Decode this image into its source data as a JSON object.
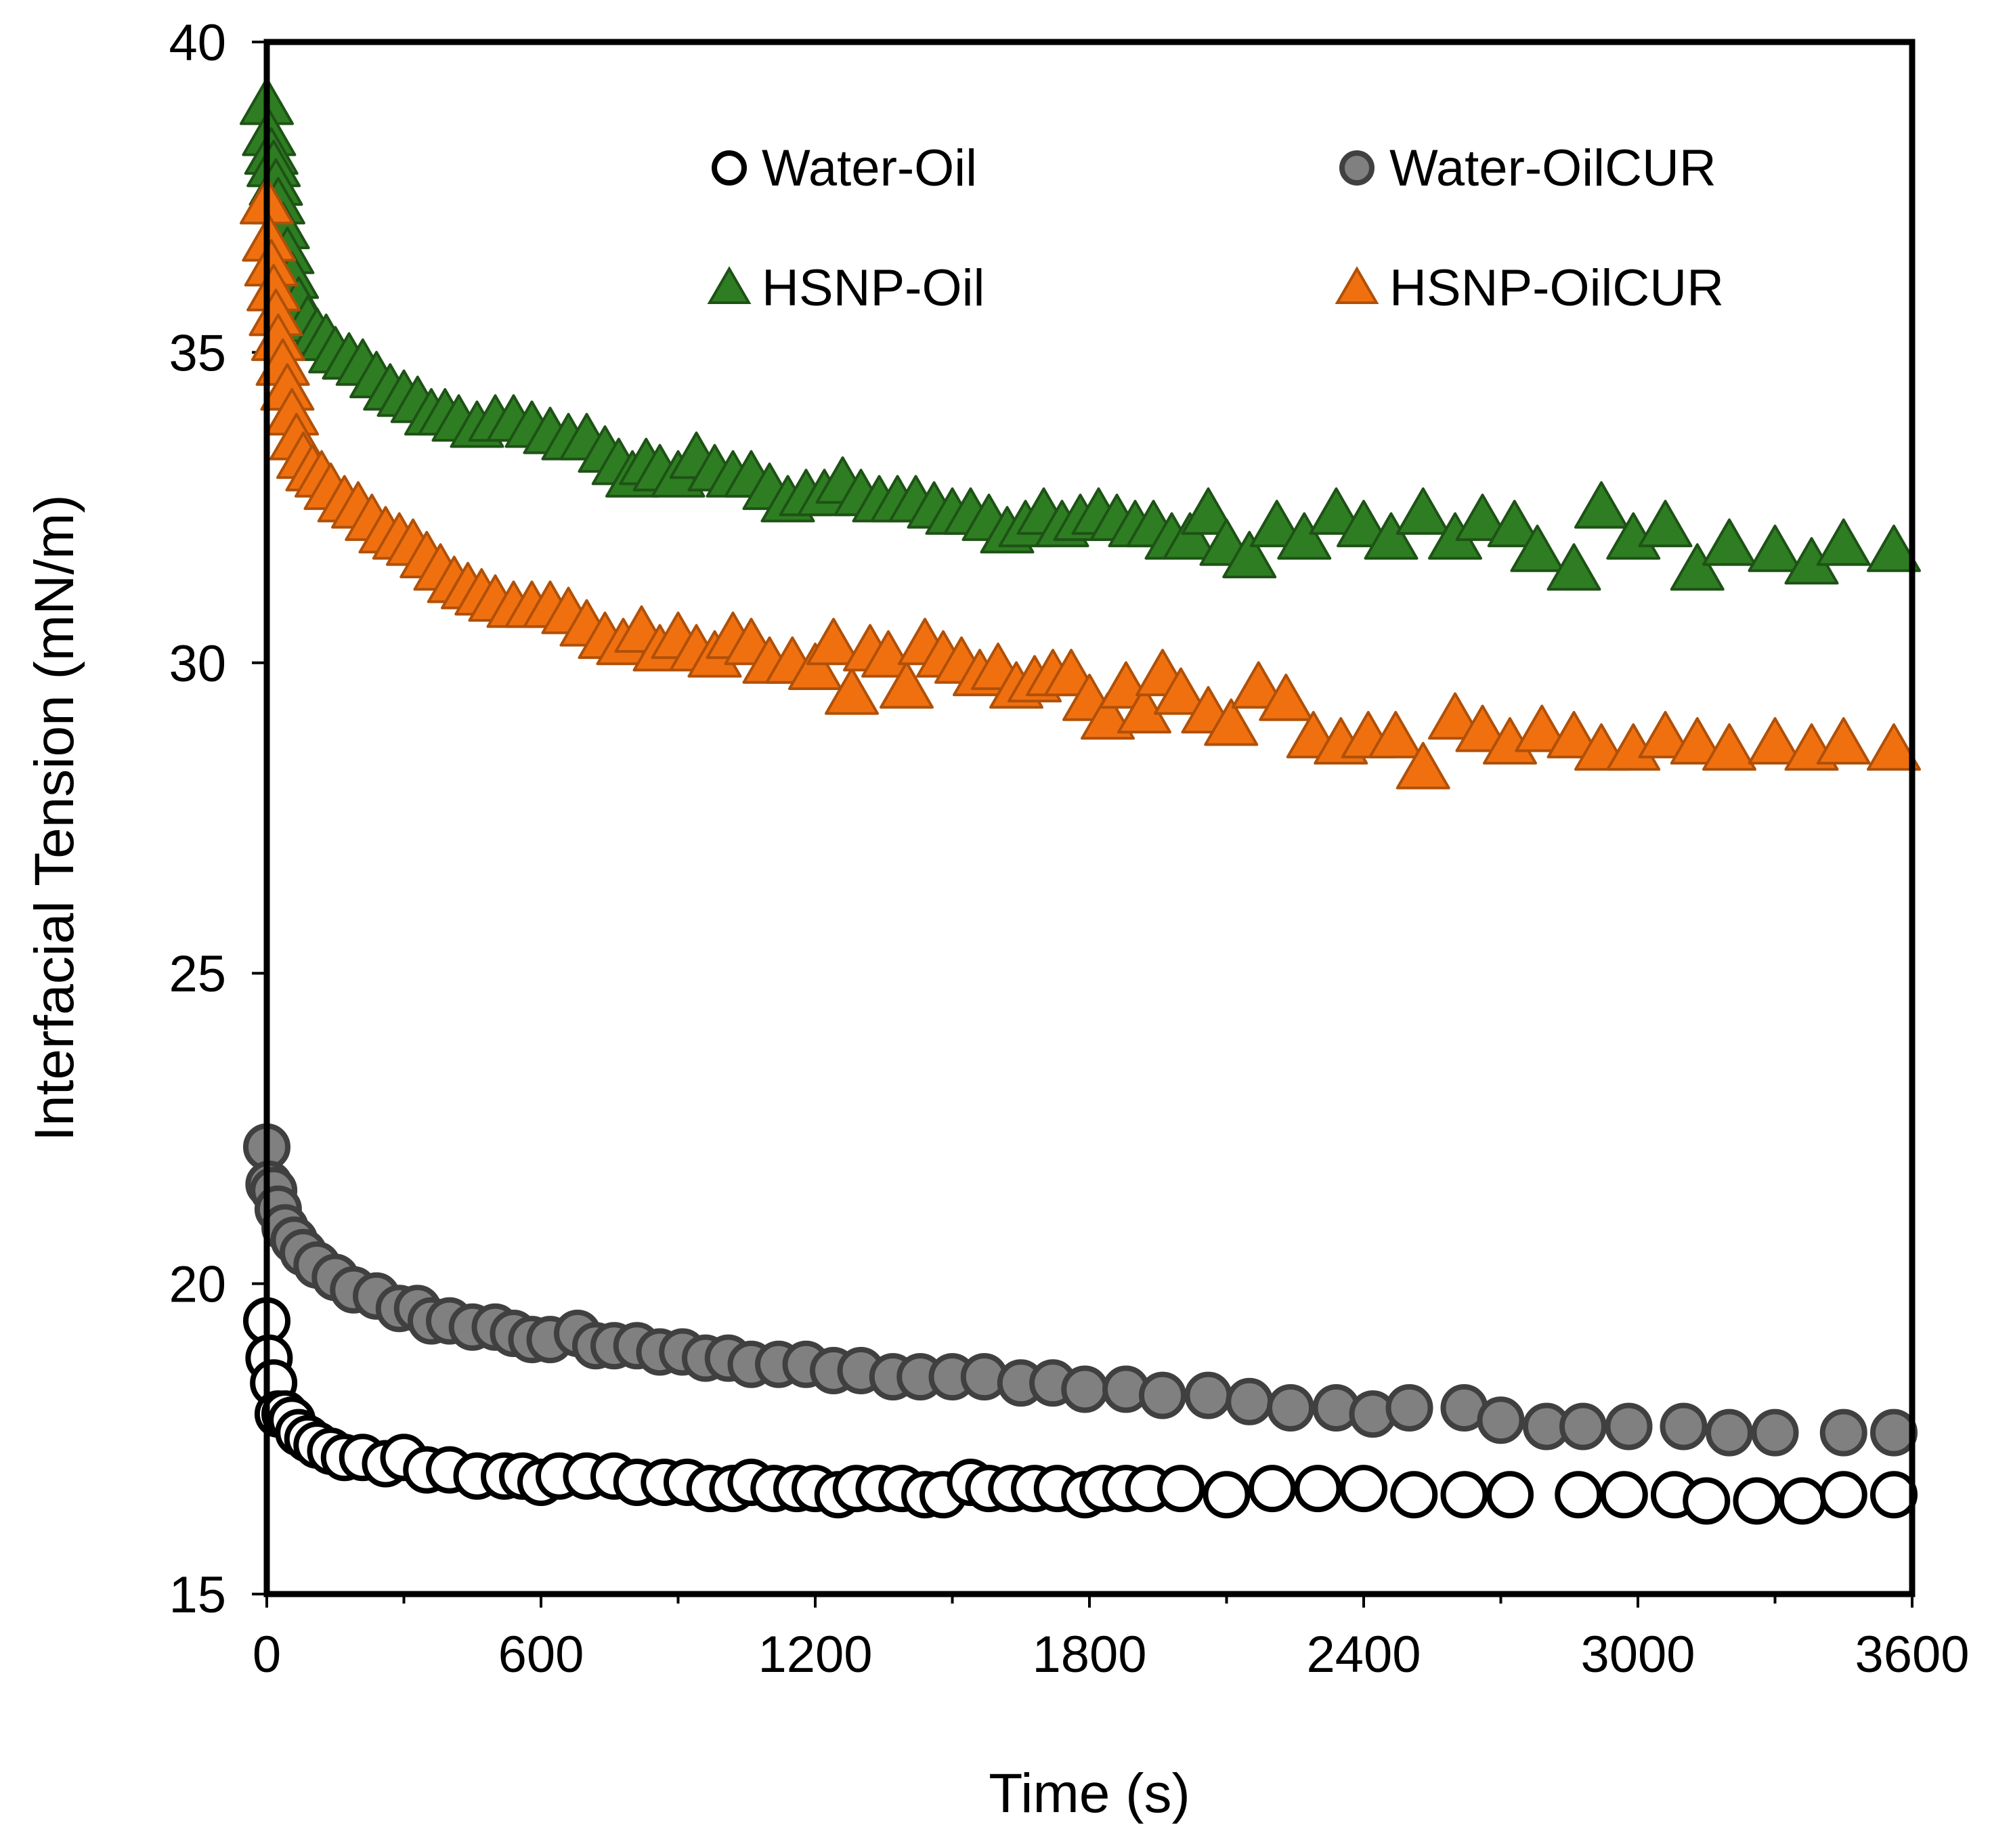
{
  "chart_data": {
    "type": "scatter",
    "title": "",
    "xlabel": "Time (s)",
    "ylabel": "Interfacial  Tension (mN/m)",
    "xlim": [
      0,
      3600
    ],
    "ylim": [
      15,
      40
    ],
    "xticks": [
      0,
      600,
      1200,
      1800,
      2400,
      3000,
      3600
    ],
    "xtick_labels": [
      "0",
      "600",
      "1200",
      "1800",
      "2400",
      "3000",
      "3600"
    ],
    "yticks": [
      15,
      20,
      25,
      30,
      35,
      40
    ],
    "ytick_labels": [
      "15",
      "20",
      "25",
      "30",
      "35",
      "40"
    ],
    "grid": false,
    "legend_position": "top",
    "series": [
      {
        "name": "Water-Oil",
        "marker": "circle",
        "fill": "#ffffff",
        "stroke": "#000000",
        "points": [
          [
            0,
            19.4
          ],
          [
            5,
            18.8
          ],
          [
            15,
            18.4
          ],
          [
            25,
            17.9
          ],
          [
            40,
            17.9
          ],
          [
            55,
            17.8
          ],
          [
            70,
            17.6
          ],
          [
            90,
            17.5
          ],
          [
            110,
            17.4
          ],
          [
            140,
            17.3
          ],
          [
            170,
            17.2
          ],
          [
            210,
            17.2
          ],
          [
            260,
            17.1
          ],
          [
            300,
            17.2
          ],
          [
            350,
            17.0
          ],
          [
            400,
            17.0
          ],
          [
            460,
            16.9
          ],
          [
            520,
            16.9
          ],
          [
            560,
            16.9
          ],
          [
            600,
            16.8
          ],
          [
            640,
            16.9
          ],
          [
            700,
            16.9
          ],
          [
            760,
            16.9
          ],
          [
            810,
            16.8
          ],
          [
            870,
            16.8
          ],
          [
            920,
            16.8
          ],
          [
            970,
            16.7
          ],
          [
            1020,
            16.7
          ],
          [
            1060,
            16.8
          ],
          [
            1110,
            16.7
          ],
          [
            1160,
            16.7
          ],
          [
            1200,
            16.7
          ],
          [
            1250,
            16.6
          ],
          [
            1290,
            16.7
          ],
          [
            1340,
            16.7
          ],
          [
            1390,
            16.7
          ],
          [
            1440,
            16.6
          ],
          [
            1480,
            16.6
          ],
          [
            1540,
            16.8
          ],
          [
            1580,
            16.7
          ],
          [
            1630,
            16.7
          ],
          [
            1680,
            16.7
          ],
          [
            1730,
            16.7
          ],
          [
            1790,
            16.6
          ],
          [
            1830,
            16.7
          ],
          [
            1880,
            16.7
          ],
          [
            1930,
            16.7
          ],
          [
            2000,
            16.7
          ],
          [
            2100,
            16.6
          ],
          [
            2200,
            16.7
          ],
          [
            2300,
            16.7
          ],
          [
            2400,
            16.7
          ],
          [
            2510,
            16.6
          ],
          [
            2620,
            16.6
          ],
          [
            2720,
            16.6
          ],
          [
            2870,
            16.6
          ],
          [
            2970,
            16.6
          ],
          [
            3080,
            16.6
          ],
          [
            3150,
            16.5
          ],
          [
            3260,
            16.5
          ],
          [
            3360,
            16.5
          ],
          [
            3450,
            16.6
          ],
          [
            3560,
            16.6
          ]
        ]
      },
      {
        "name": "Water-OilCUR",
        "marker": "circle",
        "fill": "#808080",
        "stroke": "#404040",
        "points": [
          [
            0,
            22.2
          ],
          [
            5,
            21.6
          ],
          [
            15,
            21.5
          ],
          [
            25,
            21.2
          ],
          [
            40,
            20.9
          ],
          [
            60,
            20.7
          ],
          [
            80,
            20.5
          ],
          [
            110,
            20.3
          ],
          [
            150,
            20.1
          ],
          [
            190,
            19.9
          ],
          [
            240,
            19.8
          ],
          [
            290,
            19.6
          ],
          [
            330,
            19.6
          ],
          [
            360,
            19.4
          ],
          [
            400,
            19.4
          ],
          [
            450,
            19.3
          ],
          [
            500,
            19.3
          ],
          [
            540,
            19.2
          ],
          [
            580,
            19.1
          ],
          [
            620,
            19.1
          ],
          [
            680,
            19.2
          ],
          [
            720,
            19.0
          ],
          [
            760,
            19.0
          ],
          [
            810,
            19.0
          ],
          [
            860,
            18.9
          ],
          [
            910,
            18.9
          ],
          [
            960,
            18.8
          ],
          [
            1010,
            18.8
          ],
          [
            1060,
            18.7
          ],
          [
            1120,
            18.7
          ],
          [
            1180,
            18.7
          ],
          [
            1240,
            18.6
          ],
          [
            1300,
            18.6
          ],
          [
            1370,
            18.5
          ],
          [
            1430,
            18.5
          ],
          [
            1500,
            18.5
          ],
          [
            1570,
            18.5
          ],
          [
            1650,
            18.4
          ],
          [
            1720,
            18.4
          ],
          [
            1790,
            18.3
          ],
          [
            1880,
            18.3
          ],
          [
            1960,
            18.2
          ],
          [
            2060,
            18.2
          ],
          [
            2150,
            18.1
          ],
          [
            2240,
            18.0
          ],
          [
            2340,
            18.0
          ],
          [
            2420,
            17.9
          ],
          [
            2500,
            18.0
          ],
          [
            2620,
            18.0
          ],
          [
            2700,
            17.8
          ],
          [
            2800,
            17.7
          ],
          [
            2880,
            17.7
          ],
          [
            2980,
            17.7
          ],
          [
            3100,
            17.7
          ],
          [
            3200,
            17.6
          ],
          [
            3300,
            17.6
          ],
          [
            3450,
            17.6
          ],
          [
            3560,
            17.6
          ]
        ]
      },
      {
        "name": "HSNP-Oil",
        "marker": "triangle",
        "fill": "#2e7d22",
        "stroke": "#1e5216",
        "points": [
          [
            0,
            39.0
          ],
          [
            5,
            38.5
          ],
          [
            10,
            38.2
          ],
          [
            15,
            38.0
          ],
          [
            20,
            37.7
          ],
          [
            25,
            37.4
          ],
          [
            35,
            37.0
          ],
          [
            45,
            36.6
          ],
          [
            55,
            36.2
          ],
          [
            70,
            35.8
          ],
          [
            90,
            35.5
          ],
          [
            110,
            35.3
          ],
          [
            130,
            35.2
          ],
          [
            150,
            35.0
          ],
          [
            180,
            34.9
          ],
          [
            210,
            34.8
          ],
          [
            240,
            34.6
          ],
          [
            270,
            34.4
          ],
          [
            300,
            34.3
          ],
          [
            330,
            34.2
          ],
          [
            360,
            34.0
          ],
          [
            390,
            34.0
          ],
          [
            420,
            33.9
          ],
          [
            460,
            33.8
          ],
          [
            500,
            33.9
          ],
          [
            540,
            33.9
          ],
          [
            580,
            33.8
          ],
          [
            620,
            33.7
          ],
          [
            660,
            33.6
          ],
          [
            700,
            33.6
          ],
          [
            740,
            33.4
          ],
          [
            770,
            33.2
          ],
          [
            800,
            33.0
          ],
          [
            830,
            33.2
          ],
          [
            860,
            33.1
          ],
          [
            900,
            33.0
          ],
          [
            940,
            33.3
          ],
          [
            980,
            33.1
          ],
          [
            1020,
            33.0
          ],
          [
            1060,
            33.0
          ],
          [
            1100,
            32.8
          ],
          [
            1140,
            32.6
          ],
          [
            1180,
            32.7
          ],
          [
            1220,
            32.7
          ],
          [
            1260,
            32.9
          ],
          [
            1300,
            32.7
          ],
          [
            1340,
            32.6
          ],
          [
            1380,
            32.6
          ],
          [
            1420,
            32.6
          ],
          [
            1460,
            32.5
          ],
          [
            1500,
            32.4
          ],
          [
            1540,
            32.4
          ],
          [
            1580,
            32.3
          ],
          [
            1620,
            32.1
          ],
          [
            1660,
            32.2
          ],
          [
            1700,
            32.4
          ],
          [
            1740,
            32.2
          ],
          [
            1780,
            32.3
          ],
          [
            1820,
            32.4
          ],
          [
            1860,
            32.3
          ],
          [
            1900,
            32.2
          ],
          [
            1940,
            32.2
          ],
          [
            1980,
            32.0
          ],
          [
            2020,
            32.0
          ],
          [
            2060,
            32.4
          ],
          [
            2100,
            31.9
          ],
          [
            2150,
            31.7
          ],
          [
            2210,
            32.2
          ],
          [
            2270,
            32.0
          ],
          [
            2340,
            32.4
          ],
          [
            2400,
            32.2
          ],
          [
            2460,
            32.0
          ],
          [
            2530,
            32.4
          ],
          [
            2600,
            32.0
          ],
          [
            2660,
            32.3
          ],
          [
            2730,
            32.2
          ],
          [
            2780,
            31.8
          ],
          [
            2860,
            31.5
          ],
          [
            2920,
            32.5
          ],
          [
            2990,
            32.0
          ],
          [
            3060,
            32.2
          ],
          [
            3130,
            31.5
          ],
          [
            3200,
            31.9
          ],
          [
            3300,
            31.8
          ],
          [
            3380,
            31.6
          ],
          [
            3450,
            31.9
          ],
          [
            3560,
            31.8
          ]
        ]
      },
      {
        "name": "HSNP-OilCUR",
        "marker": "triangle",
        "fill": "#f07010",
        "stroke": "#b05008",
        "points": [
          [
            0,
            37.4
          ],
          [
            5,
            36.8
          ],
          [
            10,
            36.4
          ],
          [
            15,
            36.0
          ],
          [
            20,
            35.6
          ],
          [
            25,
            35.2
          ],
          [
            35,
            34.8
          ],
          [
            45,
            34.4
          ],
          [
            55,
            34.0
          ],
          [
            65,
            33.6
          ],
          [
            80,
            33.3
          ],
          [
            100,
            33.1
          ],
          [
            120,
            33.0
          ],
          [
            140,
            32.8
          ],
          [
            170,
            32.6
          ],
          [
            200,
            32.5
          ],
          [
            230,
            32.3
          ],
          [
            260,
            32.1
          ],
          [
            290,
            32.0
          ],
          [
            320,
            31.9
          ],
          [
            350,
            31.7
          ],
          [
            380,
            31.5
          ],
          [
            410,
            31.3
          ],
          [
            440,
            31.2
          ],
          [
            470,
            31.1
          ],
          [
            500,
            31.0
          ],
          [
            540,
            30.9
          ],
          [
            580,
            30.9
          ],
          [
            620,
            30.9
          ],
          [
            660,
            30.8
          ],
          [
            700,
            30.6
          ],
          [
            740,
            30.4
          ],
          [
            780,
            30.3
          ],
          [
            820,
            30.5
          ],
          [
            860,
            30.2
          ],
          [
            900,
            30.4
          ],
          [
            940,
            30.2
          ],
          [
            980,
            30.1
          ],
          [
            1020,
            30.4
          ],
          [
            1060,
            30.3
          ],
          [
            1100,
            30.0
          ],
          [
            1150,
            30.0
          ],
          [
            1200,
            29.9
          ],
          [
            1240,
            30.3
          ],
          [
            1280,
            29.5
          ],
          [
            1320,
            30.2
          ],
          [
            1360,
            30.1
          ],
          [
            1400,
            29.6
          ],
          [
            1440,
            30.3
          ],
          [
            1480,
            30.1
          ],
          [
            1520,
            30.0
          ],
          [
            1560,
            29.8
          ],
          [
            1600,
            29.9
          ],
          [
            1640,
            29.6
          ],
          [
            1680,
            29.7
          ],
          [
            1720,
            29.8
          ],
          [
            1760,
            29.8
          ],
          [
            1800,
            29.4
          ],
          [
            1840,
            29.1
          ],
          [
            1880,
            29.6
          ],
          [
            1920,
            29.2
          ],
          [
            1960,
            29.8
          ],
          [
            2000,
            29.5
          ],
          [
            2060,
            29.2
          ],
          [
            2110,
            29.0
          ],
          [
            2170,
            29.6
          ],
          [
            2230,
            29.4
          ],
          [
            2290,
            28.8
          ],
          [
            2350,
            28.7
          ],
          [
            2410,
            28.8
          ],
          [
            2470,
            28.8
          ],
          [
            2530,
            28.3
          ],
          [
            2600,
            29.1
          ],
          [
            2660,
            28.9
          ],
          [
            2720,
            28.7
          ],
          [
            2790,
            28.9
          ],
          [
            2860,
            28.8
          ],
          [
            2920,
            28.6
          ],
          [
            2990,
            28.6
          ],
          [
            3060,
            28.8
          ],
          [
            3130,
            28.7
          ],
          [
            3200,
            28.6
          ],
          [
            3300,
            28.7
          ],
          [
            3380,
            28.6
          ],
          [
            3450,
            28.7
          ],
          [
            3560,
            28.6
          ]
        ]
      }
    ]
  }
}
